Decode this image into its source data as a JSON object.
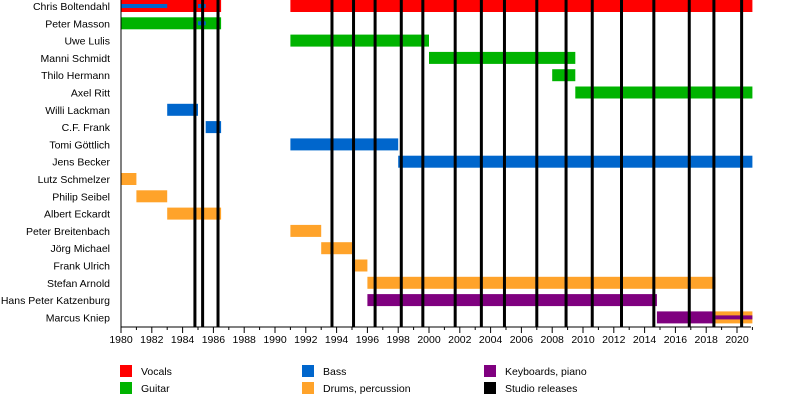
{
  "chart_data": {
    "type": "timeline",
    "xlim": [
      1980,
      2021
    ],
    "x_ticks": [
      1980,
      1982,
      1984,
      1986,
      1988,
      1990,
      1992,
      1994,
      1996,
      1998,
      2000,
      2002,
      2004,
      2006,
      2008,
      2010,
      2012,
      2014,
      2016,
      2018,
      2020
    ],
    "roles": {
      "vocals": {
        "label": "Vocals",
        "color": "#ff0000"
      },
      "guitar": {
        "label": "Guitar",
        "color": "#00b300"
      },
      "bass": {
        "label": "Bass",
        "color": "#0066cc"
      },
      "drums": {
        "label": "Drums, percussion",
        "color": "#ffa32a"
      },
      "keys": {
        "label": "Keyboards, piano",
        "color": "#7f007f"
      },
      "studio": {
        "label": "Studio releases",
        "color": "#000000"
      }
    },
    "legend_order": [
      "vocals",
      "guitar",
      "bass",
      "drums",
      "keys",
      "studio"
    ],
    "members": [
      {
        "name": "Chris Boltendahl",
        "bars": [
          [
            "vocals",
            1980,
            1986.5
          ],
          [
            "vocals",
            1991,
            2021
          ]
        ],
        "inner": [
          [
            "bass",
            1980,
            1983
          ],
          [
            "bass",
            1985,
            1985.5
          ]
        ]
      },
      {
        "name": "Peter Masson",
        "bars": [
          [
            "guitar",
            1980,
            1986.5
          ]
        ],
        "inner": [
          [
            "bass",
            1985,
            1985.5
          ]
        ]
      },
      {
        "name": "Uwe Lulis",
        "bars": [
          [
            "guitar",
            1991,
            2000
          ]
        ]
      },
      {
        "name": "Manni Schmidt",
        "bars": [
          [
            "guitar",
            2000,
            2009.5
          ]
        ]
      },
      {
        "name": "Thilo Hermann",
        "bars": [
          [
            "guitar",
            2008,
            2009.5
          ]
        ]
      },
      {
        "name": "Axel Ritt",
        "bars": [
          [
            "guitar",
            2009.5,
            2021
          ]
        ]
      },
      {
        "name": "Willi Lackman",
        "bars": [
          [
            "bass",
            1983,
            1985
          ]
        ]
      },
      {
        "name": "C.F. Frank",
        "bars": [
          [
            "bass",
            1985.5,
            1986.5
          ]
        ]
      },
      {
        "name": "Tomi Göttlich",
        "bars": [
          [
            "bass",
            1991,
            1998
          ]
        ]
      },
      {
        "name": "Jens Becker",
        "bars": [
          [
            "bass",
            1998,
            2021
          ]
        ]
      },
      {
        "name": "Lutz Schmelzer",
        "bars": [
          [
            "drums",
            1980,
            1981
          ]
        ]
      },
      {
        "name": "Philip Seibel",
        "bars": [
          [
            "drums",
            1981,
            1983
          ]
        ]
      },
      {
        "name": "Albert Eckardt",
        "bars": [
          [
            "drums",
            1983,
            1986.5
          ]
        ]
      },
      {
        "name": "Peter Breitenbach",
        "bars": [
          [
            "drums",
            1991,
            1993
          ]
        ]
      },
      {
        "name": "Jörg Michael",
        "bars": [
          [
            "drums",
            1993,
            1995
          ]
        ]
      },
      {
        "name": "Frank Ulrich",
        "bars": [
          [
            "drums",
            1995,
            1996
          ]
        ]
      },
      {
        "name": "Stefan Arnold",
        "bars": [
          [
            "drums",
            1996,
            2018.6
          ]
        ]
      },
      {
        "name": "Hans Peter Katzenburg",
        "bars": [
          [
            "keys",
            1996,
            2014.8
          ]
        ]
      },
      {
        "name": "Marcus Kniep",
        "bars": [
          [
            "keys",
            2014.8,
            2018.6
          ],
          [
            "drums",
            2018.6,
            2021
          ]
        ],
        "inner": [
          [
            "keys",
            2018.6,
            2021
          ]
        ]
      }
    ],
    "studio_releases": [
      1984.8,
      1985.3,
      1986.3,
      1993.7,
      1995.1,
      1996.5,
      1998.2,
      1999.6,
      2001.7,
      2003.4,
      2004.9,
      2007.0,
      2008.9,
      2010.6,
      2012.5,
      2014.6,
      2016.9,
      2018.5,
      2020.3
    ]
  }
}
